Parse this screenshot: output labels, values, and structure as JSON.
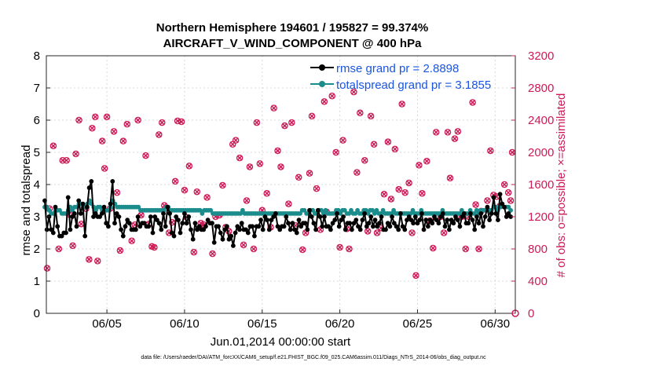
{
  "chart_data": {
    "type": "line",
    "title_line1": "Northern Hemisphere 194601 / 195827 = 99.374%",
    "title_line2": "AIRCRAFT_V_WIND_COMPONENT @ 400 hPa",
    "xlabel": "Jun.01,2014 00:00:00 start",
    "ylabel_left": "rmse and totalspread",
    "ylabel_right": "# of obs: o=possible; ×=assimilated",
    "footer": "data file: /Users/raeder/DAI/ATM_forcXX/CAM6_setup/f.e21.FHIST_BGC.f09_025.CAM6assim.011/Diags_NTrS_2014-06/obs_diag_output.nc",
    "xlim": [
      1.1,
      31.3
    ],
    "ylim_left": [
      0,
      8
    ],
    "ylim_right": [
      0,
      3200
    ],
    "x_ticks": [
      5,
      10,
      15,
      20,
      25,
      30
    ],
    "x_tick_labels": [
      "06/05",
      "06/10",
      "06/15",
      "06/20",
      "06/25",
      "06/30"
    ],
    "y_left_ticks": [
      "0",
      "1",
      "2",
      "3",
      "4",
      "5",
      "6",
      "7",
      "8"
    ],
    "y_right_ticks": [
      "0",
      "400",
      "800",
      "1200",
      "1600",
      "2000",
      "2400",
      "2800",
      "3200"
    ],
    "colors": {
      "rmse": "#000000",
      "spread": "#1b8c8c",
      "obs": "#cc1b55",
      "legend_text": "#1a55e0"
    },
    "series": [
      {
        "name": "rmse grand pr = 2.8898",
        "key": "rmse",
        "values": [
          3.5,
          2.6,
          3.0,
          2.6,
          2.5,
          3.3,
          2.7,
          2.4,
          2.4,
          2.5,
          2.5,
          3.6,
          2.6,
          3.0,
          3.1,
          2.7,
          3.5,
          3.1,
          3.4,
          2.4,
          3.3,
          3.9,
          4.1,
          3.0,
          3.1,
          3.0,
          3.0,
          3.1,
          3.3,
          2.8,
          2.7,
          3.4,
          4.1,
          2.8,
          3.1,
          3.0,
          2.6,
          2.4,
          2.7,
          2.9,
          2.8,
          2.6,
          2.6,
          2.6,
          3.0,
          2.7,
          2.8,
          2.8,
          2.7,
          2.7,
          3.0,
          2.5,
          3.0,
          2.9,
          2.8,
          2.6,
          3.1,
          2.7,
          3.3,
          3.1,
          2.5,
          2.4,
          3.0,
          2.9,
          2.5,
          2.8,
          3.1,
          2.8,
          3.0,
          2.6,
          2.3,
          2.8,
          2.6,
          2.7,
          2.6,
          2.6,
          2.7,
          2.9,
          2.8,
          2.8,
          2.2,
          2.7,
          2.7,
          2.5,
          2.3,
          2.6,
          2.7,
          2.3,
          2.4,
          2.1,
          2.5,
          2.7,
          2.6,
          2.8,
          2.6,
          2.6,
          2.5,
          2.7,
          2.7,
          2.4,
          2.7,
          2.7,
          2.9,
          2.6,
          3.0,
          2.9,
          2.6,
          2.9,
          3.0,
          3.1,
          2.7,
          2.6,
          2.7,
          2.7,
          3.0,
          2.8,
          2.6,
          2.8,
          2.6,
          2.5,
          2.9,
          2.7,
          2.8,
          2.8,
          2.6,
          3.2,
          3.0,
          2.8,
          2.6,
          3.2,
          3.0,
          2.7,
          3.0,
          2.7,
          2.7,
          2.6,
          2.8,
          2.9,
          3.1,
          2.7,
          2.9,
          3.0,
          2.6,
          2.8,
          2.8,
          2.6,
          2.8,
          2.9,
          2.7,
          2.6,
          2.9,
          3.1,
          2.7,
          2.8,
          3.0,
          2.7,
          2.9,
          2.7,
          2.8,
          3.0,
          2.6,
          2.6,
          2.8,
          2.7,
          3.0,
          2.8,
          2.7,
          2.6,
          3.1,
          2.7,
          2.6,
          2.9,
          3.0,
          2.9,
          2.8,
          3.0,
          2.8,
          2.9,
          3.1,
          2.6,
          2.9,
          2.7,
          2.9,
          2.8,
          3.0,
          2.9,
          2.8,
          3.0,
          3.1,
          2.7,
          2.9,
          2.6,
          2.9,
          2.8,
          3.0,
          2.9,
          2.7,
          3.0,
          3.1,
          2.8,
          2.8,
          3.1,
          2.9,
          2.6,
          3.0,
          2.8,
          3.1,
          2.7,
          3.0,
          3.3,
          2.9,
          3.1,
          3.6,
          3.1,
          2.9,
          3.7,
          3.4,
          3.3,
          3.0,
          3.1,
          3.0
        ]
      },
      {
        "name": "totalspread grand pr = 3.1855",
        "key": "spread",
        "values": [
          3.3,
          3.3,
          3.2,
          3.1,
          3.1,
          3.2,
          3.2,
          3.2,
          3.1,
          3.1,
          3.1,
          3.2,
          3.3,
          3.2,
          3.3,
          3.3,
          3.4,
          3.4,
          3.3,
          3.3,
          3.4,
          3.5,
          3.4,
          3.3,
          3.2,
          3.3,
          3.3,
          3.2,
          3.2,
          3.2,
          3.2,
          3.3,
          3.5,
          3.4,
          3.3,
          3.3,
          3.3,
          3.3,
          3.3,
          3.3,
          3.3,
          3.3,
          3.3,
          3.3,
          3.3,
          3.2,
          3.2,
          3.2,
          3.2,
          3.2,
          3.2,
          3.2,
          3.2,
          3.2,
          3.2,
          3.2,
          3.2,
          3.3,
          3.3,
          3.2,
          3.2,
          3.2,
          3.2,
          3.2,
          3.2,
          3.2,
          3.2,
          3.2,
          3.2,
          3.2,
          3.2,
          3.2,
          3.2,
          3.2,
          3.1,
          3.2,
          3.2,
          3.2,
          3.2,
          3.1,
          3.1,
          3.1,
          3.1,
          3.1,
          3.1,
          3.1,
          3.1,
          3.1,
          3.1,
          3.1,
          3.1,
          3.1,
          3.1,
          3.2,
          3.1,
          3.1,
          3.1,
          3.1,
          3.1,
          3.1,
          3.1,
          3.1,
          3.1,
          3.1,
          3.1,
          3.1,
          3.1,
          3.1,
          3.1,
          3.1,
          3.1,
          3.1,
          3.1,
          3.1,
          3.1,
          3.1,
          3.1,
          3.1,
          3.1,
          3.1,
          3.1,
          3.2,
          3.2,
          3.1,
          3.1,
          3.2,
          3.2,
          3.1,
          3.1,
          3.2,
          3.2,
          3.1,
          3.2,
          3.1,
          3.1,
          3.1,
          3.1,
          3.2,
          3.2,
          3.1,
          3.2,
          3.2,
          3.1,
          3.1,
          3.2,
          3.1,
          3.1,
          3.2,
          3.1,
          3.1,
          3.2,
          3.2,
          3.1,
          3.2,
          3.2,
          3.1,
          3.2,
          3.1,
          3.1,
          3.2,
          3.1,
          3.1,
          3.1,
          3.1,
          3.2,
          3.1,
          3.1,
          3.1,
          3.1,
          3.1,
          3.1,
          3.1,
          3.1,
          3.2,
          3.1,
          3.1,
          3.1,
          3.2,
          3.1,
          3.1,
          3.1,
          3.1,
          3.1,
          3.1,
          3.1,
          3.1,
          3.1,
          3.2,
          3.1,
          3.1,
          3.1,
          3.1,
          3.1,
          3.1,
          3.1,
          3.1,
          3.2,
          3.1,
          3.1,
          3.1,
          3.2,
          3.1,
          3.1,
          3.2,
          3.1,
          3.2,
          3.2,
          3.2,
          3.2,
          3.2,
          3.2,
          3.3,
          3.3,
          3.2,
          3.3,
          3.4,
          3.3,
          3.3,
          3.3,
          3.2
        ]
      }
    ],
    "obs_count": {
      "x": [
        1.15,
        1.3,
        1.55,
        1.9,
        2.15,
        2.4,
        2.55,
        2.8,
        3.0,
        3.2,
        3.35,
        3.65,
        3.85,
        4.05,
        4.25,
        4.4,
        4.7,
        4.85,
        5.0,
        5.2,
        5.45,
        5.65,
        5.85,
        6.05,
        6.3,
        6.6,
        6.8,
        7.0,
        7.2,
        7.5,
        7.7,
        7.9,
        8.05,
        8.35,
        8.55,
        8.7,
        9.0,
        9.2,
        9.4,
        9.55,
        9.8,
        10.0,
        10.15,
        10.3,
        10.6,
        10.8,
        11.05,
        11.25,
        11.45,
        11.8,
        12.0,
        12.25,
        12.45,
        12.65,
        12.85,
        13.1,
        13.3,
        13.55,
        13.8,
        14.0,
        14.2,
        14.45,
        14.65,
        14.85,
        15.0,
        15.3,
        15.55,
        15.75,
        16.0,
        16.2,
        16.45,
        16.7,
        16.9,
        17.15,
        17.35,
        17.6,
        17.8,
        18.05,
        18.2,
        18.5,
        18.75,
        19.0,
        19.15,
        19.5,
        19.75,
        20.0,
        20.2,
        20.45,
        20.6,
        20.9,
        21.1,
        21.3,
        21.6,
        21.8,
        22.0,
        22.2,
        22.4,
        22.65,
        22.85,
        23.1,
        23.3,
        23.55,
        23.8,
        24.0,
        24.2,
        24.45,
        24.65,
        24.9,
        25.1,
        25.3,
        25.6,
        25.8,
        26.0,
        26.2,
        26.5,
        26.7,
        26.95,
        27.1,
        27.4,
        27.6,
        27.85,
        28.1,
        28.3,
        28.55,
        28.75,
        28.95,
        29.1,
        29.5,
        29.7,
        29.9,
        30.1,
        30.3,
        30.6,
        30.85,
        31.0,
        31.1
      ],
      "values": [
        560,
        1300,
        2080,
        800,
        1900,
        1900,
        1230,
        840,
        1980,
        2400,
        1110,
        1300,
        670,
        2300,
        2440,
        650,
        2140,
        1800,
        2440,
        1300,
        2260,
        1500,
        780,
        2140,
        2350,
        900,
        1100,
        2400,
        1220,
        1960,
        1110,
        830,
        820,
        2220,
        2370,
        1340,
        1000,
        1130,
        1640,
        2390,
        2380,
        1530,
        1190,
        1830,
        760,
        1510,
        1120,
        1100,
        1440,
        740,
        1200,
        1220,
        1590,
        1070,
        1020,
        2100,
        2150,
        1930,
        850,
        1400,
        1820,
        800,
        2370,
        1860,
        1280,
        1490,
        1070,
        2550,
        2020,
        1820,
        2330,
        1360,
        2370,
        1090,
        1690,
        790,
        1000,
        1740,
        2450,
        1550,
        1040,
        2630,
        1260,
        2700,
        2000,
        820,
        2150,
        1050,
        800,
        2750,
        1750,
        2490,
        1900,
        1020,
        2450,
        2100,
        1000,
        1060,
        1480,
        2130,
        1420,
        2040,
        1540,
        2600,
        1500,
        1620,
        1000,
        470,
        1840,
        1490,
        1890,
        1150,
        810,
        2250,
        1200,
        1000,
        2250,
        1680,
        2170,
        2260,
        1200,
        800,
        1200,
        2620,
        1350,
        800,
        1270,
        1400,
        2020,
        1470,
        1450,
        1330,
        1600,
        1500,
        1400,
        2000
      ]
    }
  }
}
